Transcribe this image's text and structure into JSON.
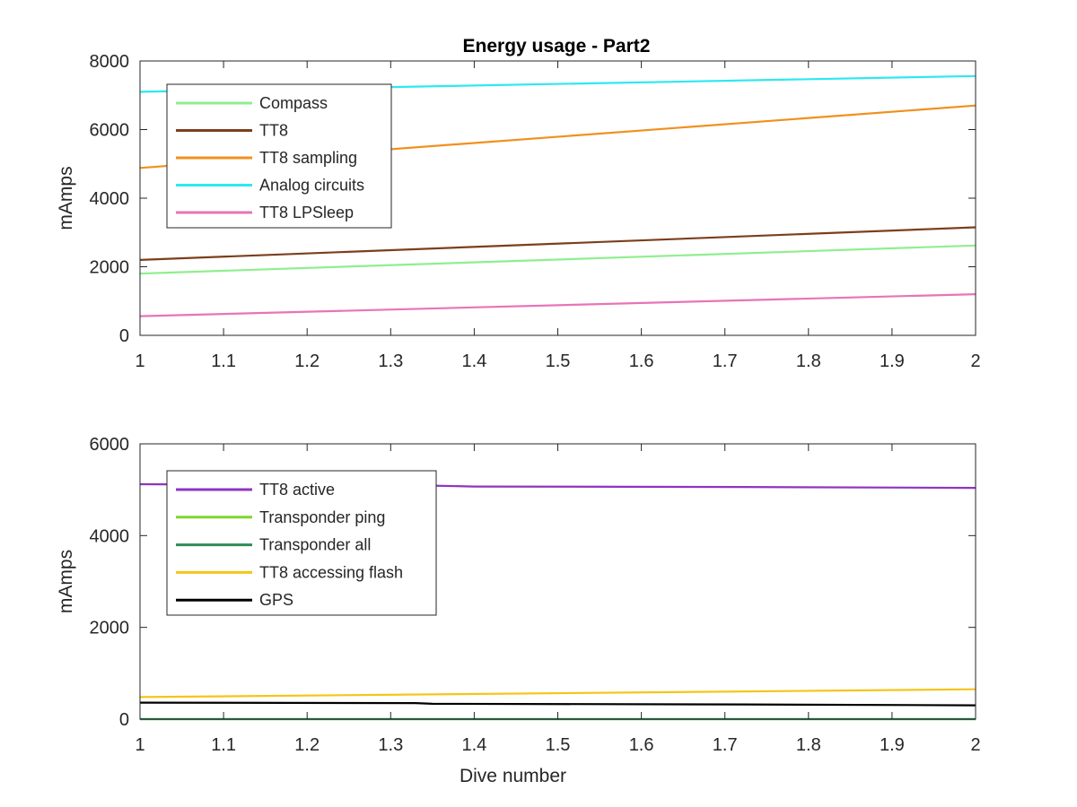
{
  "figure": {
    "title": "Energy usage - Part2"
  },
  "chart_data": [
    {
      "type": "line",
      "title": "Energy usage - Part2",
      "xlabel": "",
      "ylabel": "mAmps",
      "xlim": [
        1,
        2
      ],
      "ylim": [
        0,
        8000
      ],
      "xticks": [
        1,
        1.1,
        1.2,
        1.3,
        1.4,
        1.5,
        1.6,
        1.7,
        1.8,
        1.9,
        2
      ],
      "xtick_labels": [
        "1",
        "1.1",
        "1.2",
        "1.3",
        "1.4",
        "1.5",
        "1.6",
        "1.7",
        "1.8",
        "1.9",
        "2"
      ],
      "yticks": [
        0,
        2000,
        4000,
        6000,
        8000
      ],
      "ytick_labels": [
        "0",
        "2000",
        "4000",
        "6000",
        "8000"
      ],
      "grid": false,
      "legend_position": "top-left",
      "series": [
        {
          "name": "Compass",
          "color": "#90ee90",
          "x": [
            1,
            2
          ],
          "y": [
            1800,
            2620
          ]
        },
        {
          "name": "TT8",
          "color": "#7b3f1d",
          "x": [
            1,
            2
          ],
          "y": [
            2200,
            3150
          ]
        },
        {
          "name": "TT8 sampling",
          "color": "#f0901e",
          "x": [
            1,
            2
          ],
          "y": [
            4880,
            6700
          ]
        },
        {
          "name": "Analog circuits",
          "color": "#2ee8f0",
          "x": [
            1,
            2
          ],
          "y": [
            7100,
            7560
          ]
        },
        {
          "name": "TT8 LPSleep",
          "color": "#e874b8",
          "x": [
            1,
            2
          ],
          "y": [
            560,
            1200
          ]
        }
      ]
    },
    {
      "type": "line",
      "title": "",
      "xlabel": "Dive number",
      "ylabel": "mAmps",
      "xlim": [
        1,
        2
      ],
      "ylim": [
        0,
        6000
      ],
      "xticks": [
        1,
        1.1,
        1.2,
        1.3,
        1.4,
        1.5,
        1.6,
        1.7,
        1.8,
        1.9,
        2
      ],
      "xtick_labels": [
        "1",
        "1.1",
        "1.2",
        "1.3",
        "1.4",
        "1.5",
        "1.6",
        "1.7",
        "1.8",
        "1.9",
        "2"
      ],
      "yticks": [
        0,
        2000,
        4000,
        6000
      ],
      "ytick_labels": [
        "0",
        "2000",
        "4000",
        "6000"
      ],
      "grid": false,
      "legend_position": "top-left",
      "series": [
        {
          "name": "TT8 active",
          "color": "#8e35c0",
          "x": [
            1,
            1.35,
            1.4,
            1.72,
            2
          ],
          "y": [
            5120,
            5090,
            5070,
            5060,
            5040
          ]
        },
        {
          "name": "Transponder ping",
          "color": "#7ed62a",
          "x": [
            1,
            2
          ],
          "y": [
            0,
            0
          ]
        },
        {
          "name": "Transponder all",
          "color": "#2e8b57",
          "x": [
            1,
            2
          ],
          "y": [
            0,
            0
          ]
        },
        {
          "name": "TT8 accessing flash",
          "color": "#f5c518",
          "x": [
            1,
            2
          ],
          "y": [
            480,
            650
          ]
        },
        {
          "name": "GPS",
          "color": "#000000",
          "x": [
            1,
            1.33,
            1.35,
            1.72,
            2
          ],
          "y": [
            360,
            350,
            335,
            320,
            300
          ]
        }
      ]
    }
  ]
}
